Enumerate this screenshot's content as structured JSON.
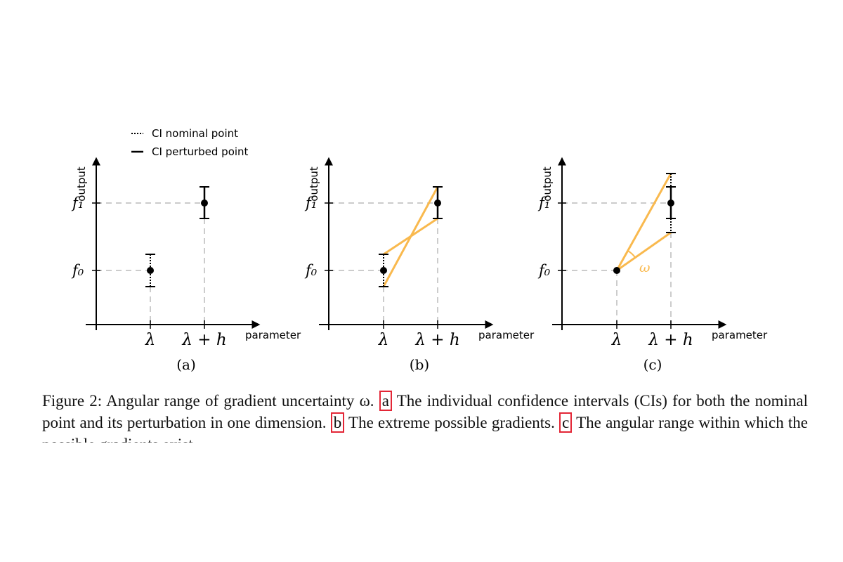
{
  "legend": {
    "nominal": "CI nominal point",
    "perturbed": "CI perturbed point"
  },
  "axes": {
    "ylabel": "output",
    "xlabel": "parameter",
    "xticks": [
      "λ",
      "λ + h"
    ],
    "yticks": [
      "f₁",
      "f₀"
    ]
  },
  "panels": [
    {
      "label": "(a)",
      "mode": "ci"
    },
    {
      "label": "(b)",
      "mode": "extreme"
    },
    {
      "label": "(c)",
      "mode": "angular",
      "angle_symbol": "ω"
    }
  ],
  "colors": {
    "gradient_lines": "#f9b94e",
    "grid_dashes": "#cccccc",
    "axes": "#000000",
    "ref_box": "#e32636"
  },
  "caption": {
    "prefix": "Figure 2: Angular range of gradient uncertainty ω.",
    "ref_a": "a",
    "text_a": "The individual confidence intervals (CIs) for both the nominal point and its perturbation in one dimension.",
    "ref_b": "b",
    "text_b": "The extreme possible gradients.",
    "ref_c": "c",
    "text_c": "The angular range within which the possible gradients exist."
  }
}
